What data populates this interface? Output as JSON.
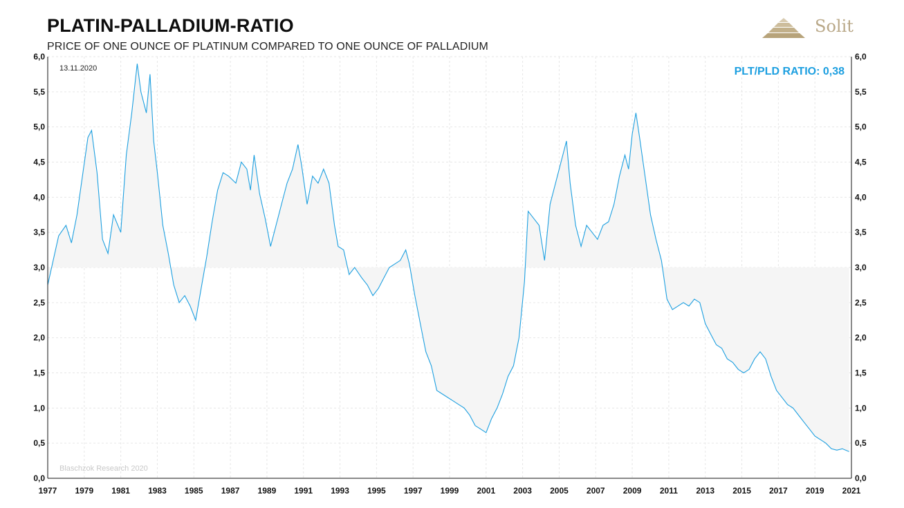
{
  "header": {
    "title": "PLATIN-PALLADIUM-RATIO",
    "subtitle": "PRICE OF ONE OUNCE OF PLATINUM COMPARED TO ONE OUNCE OF PALLADIUM",
    "logo_text": "Solit"
  },
  "colors": {
    "line": "#1c9fe0",
    "fill": "#f5f5f5",
    "grid": "#e6e6e6",
    "logo": "#b9a888"
  },
  "chart_data": {
    "type": "line",
    "title": "PLATIN-PALLADIUM-RATIO",
    "subtitle": "PRICE OF ONE OUNCE OF PLATINUM COMPARED TO ONE OUNCE OF PALLADIUM",
    "xlim": [
      1977,
      2021
    ],
    "ylim": [
      0,
      6
    ],
    "grid": true,
    "shaded_reference": 3.0,
    "x_ticks": [
      "1977",
      "1979",
      "1981",
      "1983",
      "1985",
      "1987",
      "1989",
      "1991",
      "1993",
      "1995",
      "1997",
      "1999",
      "2001",
      "2003",
      "2005",
      "2007",
      "2009",
      "2011",
      "2013",
      "2015",
      "2017",
      "2019",
      "2021"
    ],
    "y_ticks": [
      "0,0",
      "0,5",
      "1,0",
      "1,5",
      "2,0",
      "2,5",
      "3,0",
      "3,5",
      "4,0",
      "4,5",
      "5,0",
      "5,5",
      "6,0"
    ],
    "annotations": {
      "date": "13.11.2020",
      "current": "PLT/PLD RATIO: 0,38",
      "source": "Blaschzok Research 2020"
    },
    "series": [
      {
        "values": [
          [
            1977.0,
            2.75
          ],
          [
            1977.3,
            3.1
          ],
          [
            1977.6,
            3.45
          ],
          [
            1978.0,
            3.6
          ],
          [
            1978.3,
            3.35
          ],
          [
            1978.6,
            3.75
          ],
          [
            1978.9,
            4.3
          ],
          [
            1979.2,
            4.85
          ],
          [
            1979.4,
            4.95
          ],
          [
            1979.7,
            4.35
          ],
          [
            1980.0,
            3.4
          ],
          [
            1980.3,
            3.2
          ],
          [
            1980.6,
            3.75
          ],
          [
            1981.0,
            3.5
          ],
          [
            1981.3,
            4.6
          ],
          [
            1981.6,
            5.2
          ],
          [
            1981.9,
            5.9
          ],
          [
            1982.1,
            5.5
          ],
          [
            1982.4,
            5.2
          ],
          [
            1982.6,
            5.75
          ],
          [
            1982.8,
            4.8
          ],
          [
            1983.0,
            4.35
          ],
          [
            1983.3,
            3.6
          ],
          [
            1983.6,
            3.2
          ],
          [
            1983.9,
            2.75
          ],
          [
            1984.2,
            2.5
          ],
          [
            1984.5,
            2.6
          ],
          [
            1984.8,
            2.45
          ],
          [
            1985.1,
            2.25
          ],
          [
            1985.4,
            2.7
          ],
          [
            1985.7,
            3.15
          ],
          [
            1986.0,
            3.65
          ],
          [
            1986.3,
            4.1
          ],
          [
            1986.6,
            4.35
          ],
          [
            1986.9,
            4.3
          ],
          [
            1987.3,
            4.2
          ],
          [
            1987.6,
            4.5
          ],
          [
            1987.9,
            4.4
          ],
          [
            1988.1,
            4.1
          ],
          [
            1988.3,
            4.6
          ],
          [
            1988.6,
            4.05
          ],
          [
            1988.9,
            3.7
          ],
          [
            1989.2,
            3.3
          ],
          [
            1989.5,
            3.6
          ],
          [
            1989.8,
            3.9
          ],
          [
            1990.1,
            4.2
          ],
          [
            1990.4,
            4.4
          ],
          [
            1990.7,
            4.75
          ],
          [
            1990.9,
            4.45
          ],
          [
            1991.2,
            3.9
          ],
          [
            1991.5,
            4.3
          ],
          [
            1991.8,
            4.2
          ],
          [
            1992.1,
            4.4
          ],
          [
            1992.4,
            4.2
          ],
          [
            1992.7,
            3.6
          ],
          [
            1992.9,
            3.3
          ],
          [
            1993.2,
            3.25
          ],
          [
            1993.5,
            2.9
          ],
          [
            1993.8,
            3.0
          ],
          [
            1994.2,
            2.85
          ],
          [
            1994.5,
            2.75
          ],
          [
            1994.8,
            2.6
          ],
          [
            1995.1,
            2.7
          ],
          [
            1995.4,
            2.85
          ],
          [
            1995.7,
            3.0
          ],
          [
            1996.0,
            3.05
          ],
          [
            1996.3,
            3.1
          ],
          [
            1996.6,
            3.25
          ],
          [
            1996.8,
            3.05
          ],
          [
            1997.1,
            2.6
          ],
          [
            1997.4,
            2.2
          ],
          [
            1997.7,
            1.8
          ],
          [
            1998.0,
            1.6
          ],
          [
            1998.3,
            1.25
          ],
          [
            1998.6,
            1.2
          ],
          [
            1998.9,
            1.15
          ],
          [
            1999.2,
            1.1
          ],
          [
            1999.5,
            1.05
          ],
          [
            1999.8,
            1.0
          ],
          [
            2000.1,
            0.9
          ],
          [
            2000.4,
            0.75
          ],
          [
            2000.7,
            0.7
          ],
          [
            2001.0,
            0.65
          ],
          [
            2001.3,
            0.85
          ],
          [
            2001.6,
            1.0
          ],
          [
            2001.9,
            1.2
          ],
          [
            2002.2,
            1.45
          ],
          [
            2002.5,
            1.6
          ],
          [
            2002.8,
            2.0
          ],
          [
            2003.1,
            2.8
          ],
          [
            2003.3,
            3.8
          ],
          [
            2003.6,
            3.7
          ],
          [
            2003.9,
            3.6
          ],
          [
            2004.2,
            3.1
          ],
          [
            2004.5,
            3.9
          ],
          [
            2004.8,
            4.2
          ],
          [
            2005.1,
            4.5
          ],
          [
            2005.4,
            4.8
          ],
          [
            2005.6,
            4.2
          ],
          [
            2005.9,
            3.6
          ],
          [
            2006.2,
            3.3
          ],
          [
            2006.5,
            3.6
          ],
          [
            2006.8,
            3.5
          ],
          [
            2007.1,
            3.4
          ],
          [
            2007.4,
            3.6
          ],
          [
            2007.7,
            3.65
          ],
          [
            2008.0,
            3.9
          ],
          [
            2008.3,
            4.3
          ],
          [
            2008.6,
            4.6
          ],
          [
            2008.8,
            4.4
          ],
          [
            2009.0,
            4.9
          ],
          [
            2009.2,
            5.2
          ],
          [
            2009.4,
            4.85
          ],
          [
            2009.7,
            4.3
          ],
          [
            2010.0,
            3.75
          ],
          [
            2010.3,
            3.4
          ],
          [
            2010.6,
            3.1
          ],
          [
            2010.9,
            2.55
          ],
          [
            2011.2,
            2.4
          ],
          [
            2011.5,
            2.45
          ],
          [
            2011.8,
            2.5
          ],
          [
            2012.1,
            2.45
          ],
          [
            2012.4,
            2.55
          ],
          [
            2012.7,
            2.5
          ],
          [
            2013.0,
            2.2
          ],
          [
            2013.3,
            2.05
          ],
          [
            2013.6,
            1.9
          ],
          [
            2013.9,
            1.85
          ],
          [
            2014.2,
            1.7
          ],
          [
            2014.5,
            1.65
          ],
          [
            2014.8,
            1.55
          ],
          [
            2015.1,
            1.5
          ],
          [
            2015.4,
            1.55
          ],
          [
            2015.7,
            1.7
          ],
          [
            2016.0,
            1.8
          ],
          [
            2016.3,
            1.7
          ],
          [
            2016.6,
            1.45
          ],
          [
            2016.9,
            1.25
          ],
          [
            2017.2,
            1.15
          ],
          [
            2017.5,
            1.05
          ],
          [
            2017.8,
            1.0
          ],
          [
            2018.1,
            0.9
          ],
          [
            2018.4,
            0.8
          ],
          [
            2018.7,
            0.7
          ],
          [
            2019.0,
            0.6
          ],
          [
            2019.3,
            0.55
          ],
          [
            2019.6,
            0.5
          ],
          [
            2019.9,
            0.42
          ],
          [
            2020.2,
            0.4
          ],
          [
            2020.5,
            0.42
          ],
          [
            2020.87,
            0.38
          ]
        ]
      }
    ]
  }
}
